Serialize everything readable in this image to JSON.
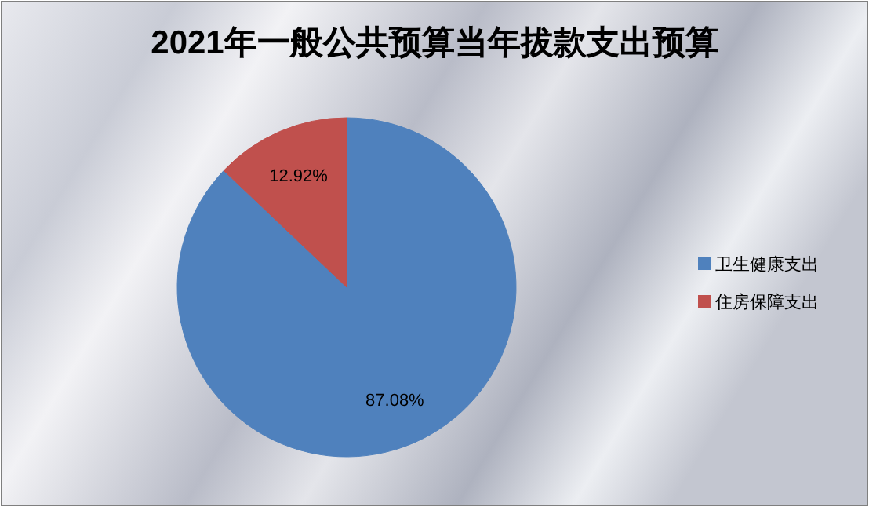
{
  "chart_data": {
    "type": "pie",
    "title": "2021年一般公共预算当年拔款支出预算",
    "categories": [
      "卫生健康支出",
      "住房保障支出"
    ],
    "values": [
      87.08,
      12.92
    ],
    "colors": [
      "#4f81bd",
      "#c0504d"
    ],
    "value_labels": [
      "87.08%",
      "12.92%"
    ],
    "legend": "right"
  }
}
